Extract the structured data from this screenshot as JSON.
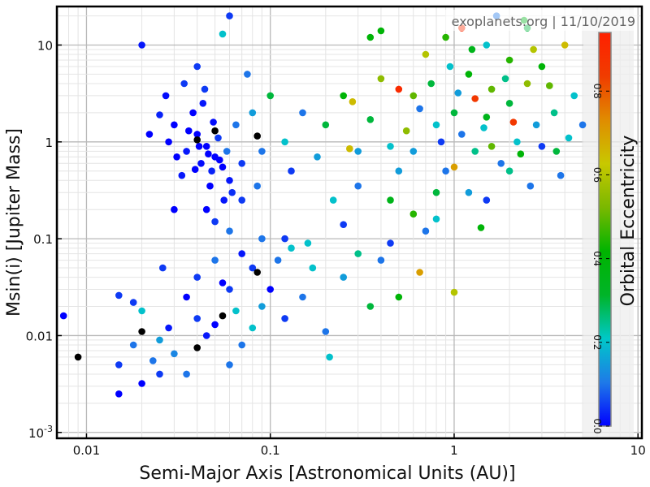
{
  "watermark": "exoplanets.org | 11/10/2019",
  "chart_data": {
    "type": "scatter",
    "title": "",
    "xlabel": "Semi-Major Axis [Astronomical Units (AU)]",
    "ylabel": "Msin(i) [Jupiter Mass]",
    "xscale": "log",
    "yscale": "log",
    "xlim": [
      0.0069,
      10.5
    ],
    "ylim": [
      0.00087,
      25
    ],
    "grid": true,
    "x_tick_labels": [
      "0.01",
      "0.1",
      "1",
      "10"
    ],
    "x_ticks": [
      0.01,
      0.1,
      1,
      10
    ],
    "y_tick_labels": [
      {
        "value": 0.001,
        "base": "10",
        "exp": "-3"
      },
      {
        "value": 0.01,
        "text": "0.01"
      },
      {
        "value": 0.1,
        "text": "0.1"
      },
      {
        "value": 1,
        "text": "1"
      },
      {
        "value": 10,
        "text": "10"
      }
    ],
    "colorbar": {
      "label": "Orbital Eccentricity",
      "range": [
        0,
        0.94
      ],
      "ticks": [
        "0.0",
        "0.2",
        "0.4",
        "0.6",
        "0.8"
      ],
      "tick_values": [
        0,
        0.2,
        0.4,
        0.6,
        0.8
      ],
      "colormap": [
        "#0000ff",
        "#1e7ae8",
        "#00c8c8",
        "#00b428",
        "#00b400",
        "#7ab800",
        "#c8c800",
        "#e08c00",
        "#f03c00",
        "#ff2000"
      ],
      "missing_color": "#000000"
    },
    "point_fields": [
      "semi_major_axis_au",
      "msini_mjup",
      "eccentricity"
    ],
    "points": [
      [
        0.03,
        1.5,
        0
      ],
      [
        0.035,
        0.8,
        0.02
      ],
      [
        0.04,
        1.2,
        0
      ],
      [
        0.042,
        0.6,
        0.01
      ],
      [
        0.045,
        0.9,
        0
      ],
      [
        0.048,
        0.5,
        0.03
      ],
      [
        0.05,
        0.7,
        0
      ],
      [
        0.052,
        1.1,
        0.05
      ],
      [
        0.055,
        0.55,
        0
      ],
      [
        0.038,
        2.0,
        0
      ],
      [
        0.033,
        0.45,
        0.02
      ],
      [
        0.044,
        3.5,
        0.05
      ],
      [
        0.06,
        0.4,
        0.02
      ],
      [
        0.028,
        1.0,
        0
      ],
      [
        0.025,
        1.9,
        0.03
      ],
      [
        0.047,
        0.35,
        0
      ],
      [
        0.058,
        0.8,
        0.1
      ],
      [
        0.065,
        1.5,
        0.1
      ],
      [
        0.07,
        0.6,
        0.05
      ],
      [
        0.036,
        1.3,
        0
      ],
      [
        0.041,
        0.9,
        0
      ],
      [
        0.049,
        1.6,
        0.01
      ],
      [
        0.053,
        0.65,
        0
      ],
      [
        0.046,
        0.75,
        0
      ],
      [
        0.039,
        0.52,
        0
      ],
      [
        0.031,
        0.7,
        0
      ],
      [
        0.043,
        2.5,
        0.02
      ],
      [
        0.062,
        0.3,
        0.04
      ],
      [
        0.056,
        0.25,
        0.02
      ],
      [
        0.034,
        4.0,
        0.05
      ],
      [
        0.027,
        3.0,
        0.01
      ],
      [
        0.022,
        1.2,
        0
      ],
      [
        0.02,
        10,
        0.02
      ],
      [
        0.04,
        6,
        0.05
      ],
      [
        0.08,
        2.0,
        0.15
      ],
      [
        0.09,
        0.8,
        0.1
      ],
      [
        0.1,
        3,
        0.3
      ],
      [
        0.12,
        1.0,
        0.2
      ],
      [
        0.15,
        2.0,
        0.1
      ],
      [
        0.13,
        0.5,
        0.05
      ],
      [
        0.05,
        0.15,
        0.05
      ],
      [
        0.06,
        0.12,
        0.1
      ],
      [
        0.045,
        0.2,
        0
      ],
      [
        0.07,
        0.25,
        0.05
      ],
      [
        0.03,
        0.2,
        0.0
      ],
      [
        0.075,
        5,
        0.1
      ],
      [
        0.06,
        20,
        0.05
      ],
      [
        0.055,
        13,
        0.2
      ],
      [
        0.085,
        0.35,
        0.1
      ],
      [
        0.18,
        0.7,
        0.15
      ],
      [
        0.2,
        1.5,
        0.3
      ],
      [
        0.22,
        0.25,
        0.2
      ],
      [
        0.25,
        3,
        0.4
      ],
      [
        0.3,
        0.8,
        0.15
      ],
      [
        0.35,
        1.7,
        0.3
      ],
      [
        0.4,
        4.5,
        0.55
      ],
      [
        0.45,
        0.9,
        0.2
      ],
      [
        0.25,
        0.14,
        0.05
      ],
      [
        0.3,
        0.35,
        0.1
      ],
      [
        0.0075,
        0.016,
        0
      ],
      [
        0.015,
        0.0025,
        0
      ],
      [
        0.015,
        0.005,
        0.05
      ],
      [
        0.018,
        0.008,
        0.1
      ],
      [
        0.02,
        0.0032,
        0
      ],
      [
        0.02,
        0.018,
        0.2
      ],
      [
        0.023,
        0.0055,
        0.1
      ],
      [
        0.025,
        0.009,
        0.15
      ],
      [
        0.028,
        0.012,
        0.02
      ],
      [
        0.03,
        0.0065,
        0.12
      ],
      [
        0.035,
        0.025,
        0
      ],
      [
        0.035,
        0.004,
        0.1
      ],
      [
        0.04,
        0.04,
        0.05
      ],
      [
        0.045,
        0.01,
        0.02
      ],
      [
        0.05,
        0.013,
        0
      ],
      [
        0.05,
        0.06,
        0.1
      ],
      [
        0.06,
        0.03,
        0.05
      ],
      [
        0.065,
        0.018,
        0.2
      ],
      [
        0.07,
        0.008,
        0.1
      ],
      [
        0.08,
        0.05,
        0.05
      ],
      [
        0.08,
        0.012,
        0.2
      ],
      [
        0.09,
        0.02,
        0.15
      ],
      [
        0.1,
        0.03,
        0
      ],
      [
        0.11,
        0.06,
        0.1
      ],
      [
        0.12,
        0.015,
        0.05
      ],
      [
        0.13,
        0.08,
        0.2
      ],
      [
        0.15,
        0.025,
        0.1
      ],
      [
        0.17,
        0.05,
        0.2
      ],
      [
        0.2,
        0.011,
        0.1
      ],
      [
        0.21,
        0.006,
        0.2
      ],
      [
        0.25,
        0.04,
        0.15
      ],
      [
        0.3,
        0.07,
        0.25
      ],
      [
        0.35,
        0.02,
        0.3
      ],
      [
        0.4,
        0.06,
        0.1
      ],
      [
        0.45,
        0.09,
        0.05
      ],
      [
        0.5,
        0.025,
        0.4
      ],
      [
        0.65,
        0.045,
        0.7
      ],
      [
        1.0,
        0.028,
        0.6
      ],
      [
        0.018,
        0.022,
        0.05
      ],
      [
        0.026,
        0.05,
        0.05
      ],
      [
        0.04,
        0.015,
        0.05
      ],
      [
        0.055,
        0.035,
        0
      ],
      [
        0.07,
        0.07,
        0.02
      ],
      [
        0.09,
        0.1,
        0.1
      ],
      [
        0.12,
        0.1,
        0.05
      ],
      [
        0.16,
        0.09,
        0.2
      ],
      [
        0.06,
        0.005,
        0.1
      ],
      [
        0.015,
        0.026,
        0.05
      ],
      [
        0.025,
        0.004,
        0.05
      ],
      [
        0.6,
        3,
        0.5
      ],
      [
        0.7,
        8,
        0.6
      ],
      [
        0.8,
        1.5,
        0.2
      ],
      [
        0.9,
        0.5,
        0.1
      ],
      [
        1.0,
        2,
        0.3
      ],
      [
        1.1,
        1.2,
        0.1
      ],
      [
        1.2,
        5,
        0.4
      ],
      [
        1.3,
        0.8,
        0.25
      ],
      [
        1.5,
        1.8,
        0.35
      ],
      [
        1.5,
        10,
        0.2
      ],
      [
        1.6,
        3.5,
        0.5
      ],
      [
        1.8,
        0.6,
        0.1
      ],
      [
        2.0,
        2.5,
        0.3
      ],
      [
        2.0,
        7,
        0.45
      ],
      [
        2.2,
        1.0,
        0.2
      ],
      [
        2.5,
        4,
        0.55
      ],
      [
        2.5,
        15,
        0.3
      ],
      [
        2.8,
        1.5,
        0.15
      ],
      [
        3.0,
        0.9,
        0.05
      ],
      [
        3.0,
        6,
        0.4
      ],
      [
        3.5,
        2,
        0.25
      ],
      [
        3.8,
        0.45,
        0.1
      ],
      [
        4.0,
        10,
        0.65
      ],
      [
        4.5,
        3,
        0.2
      ],
      [
        5.0,
        1.5,
        0.1
      ],
      [
        1.2,
        0.3,
        0.15
      ],
      [
        1.5,
        0.25,
        0.05
      ],
      [
        0.8,
        0.3,
        0.3
      ],
      [
        0.6,
        0.8,
        0.15
      ],
      [
        1.0,
        0.55,
        0.7
      ],
      [
        1.4,
        0.13,
        0.4
      ],
      [
        2.0,
        0.5,
        0.25
      ],
      [
        2.6,
        0.35,
        0.1
      ],
      [
        1.7,
        20,
        0.1
      ],
      [
        1.1,
        15,
        0.9
      ],
      [
        2.4,
        18,
        0.35
      ],
      [
        0.5,
        3.5,
        0.9
      ],
      [
        0.75,
        4,
        0.3
      ],
      [
        0.55,
        1.3,
        0.55
      ],
      [
        1.3,
        2.8,
        0.85
      ],
      [
        2.1,
        1.6,
        0.85
      ],
      [
        0.9,
        12,
        0.45
      ],
      [
        0.4,
        14,
        0.4
      ],
      [
        0.35,
        12,
        0.4
      ],
      [
        0.27,
        0.85,
        0.65
      ],
      [
        0.28,
        2.6,
        0.65
      ],
      [
        0.8,
        0.16,
        0.2
      ],
      [
        0.5,
        0.5,
        0.15
      ],
      [
        1.6,
        0.9,
        0.5
      ],
      [
        3.3,
        3.8,
        0.5
      ],
      [
        4.2,
        1.1,
        0.2
      ],
      [
        0.95,
        6,
        0.2
      ],
      [
        1.25,
        9,
        0.35
      ],
      [
        2.7,
        9,
        0.6
      ],
      [
        1.9,
        4.5,
        0.25
      ],
      [
        0.65,
        2.2,
        0.1
      ],
      [
        1.05,
        3.2,
        0.15
      ],
      [
        1.45,
        1.4,
        0.2
      ],
      [
        0.85,
        1.0,
        0.05
      ],
      [
        2.3,
        0.75,
        0.4
      ],
      [
        3.6,
        0.8,
        0.3
      ],
      [
        0.45,
        0.25,
        0.35
      ],
      [
        0.6,
        0.18,
        0.45
      ],
      [
        0.7,
        0.12,
        0.1
      ],
      [
        0.009,
        0.006,
        null
      ],
      [
        0.02,
        0.011,
        null
      ],
      [
        0.04,
        0.0075,
        null
      ],
      [
        0.055,
        0.016,
        null
      ],
      [
        0.085,
        0.045,
        null
      ],
      [
        0.05,
        1.3,
        null
      ],
      [
        0.04,
        1.05,
        null
      ],
      [
        0.085,
        1.15,
        null
      ]
    ]
  }
}
